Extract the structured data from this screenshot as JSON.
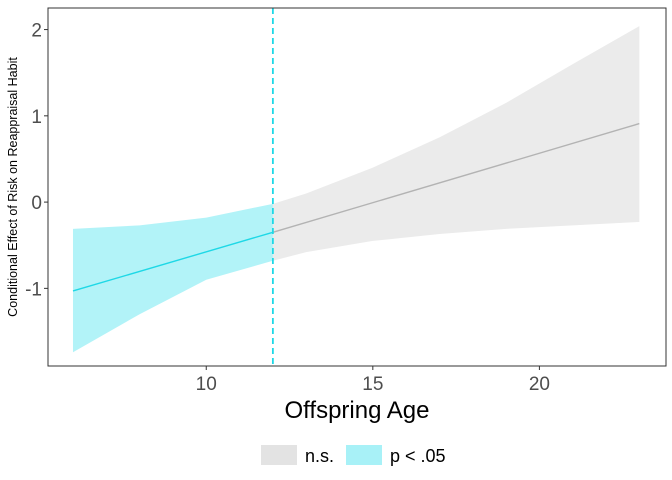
{
  "chart_data": {
    "type": "line",
    "title": "",
    "xlabel": "Offspring Age",
    "ylabel": "Conditional Effect of Risk on Reappraisal Habit",
    "xlim": [
      5.25,
      23.8
    ],
    "ylim": [
      -1.9,
      2.25
    ],
    "x_ticks": [
      10,
      15,
      20
    ],
    "y_ticks": [
      2,
      1,
      0,
      -1
    ],
    "y_tick_labels": [
      "2",
      "1",
      "0",
      "-1"
    ],
    "grid": false,
    "threshold_x": 12,
    "line": {
      "x": [
        6,
        12,
        23
      ],
      "y": [
        -1.03,
        -0.35,
        0.91
      ]
    },
    "ci_band": {
      "x": [
        6,
        8,
        10,
        12,
        13,
        15,
        17,
        19,
        21,
        23
      ],
      "upper": [
        -0.31,
        -0.27,
        -0.18,
        -0.02,
        0.1,
        0.4,
        0.75,
        1.15,
        1.6,
        2.04
      ],
      "lower": [
        -1.74,
        -1.3,
        -0.9,
        -0.68,
        -0.58,
        -0.45,
        -0.37,
        -0.31,
        -0.27,
        -0.23
      ]
    },
    "series": [
      {
        "name": "n.s.",
        "x_range": [
          12,
          23
        ],
        "color": "#b3b3b3",
        "fill": "#ebebeb"
      },
      {
        "name": "p < .05",
        "x_range": [
          6,
          12
        ],
        "color": "#1ed8e6",
        "fill": "#b2f3f8"
      }
    ],
    "legend": {
      "position": "bottom",
      "labels": [
        "n.s.",
        "p < .05"
      ]
    },
    "colors": {
      "sig_line": "#1ed8e6",
      "sig_fill": "#b2f3f8",
      "ns_line": "#b3b3b3",
      "ns_fill": "#ebebeb",
      "threshold": "#1ed8e6"
    }
  }
}
